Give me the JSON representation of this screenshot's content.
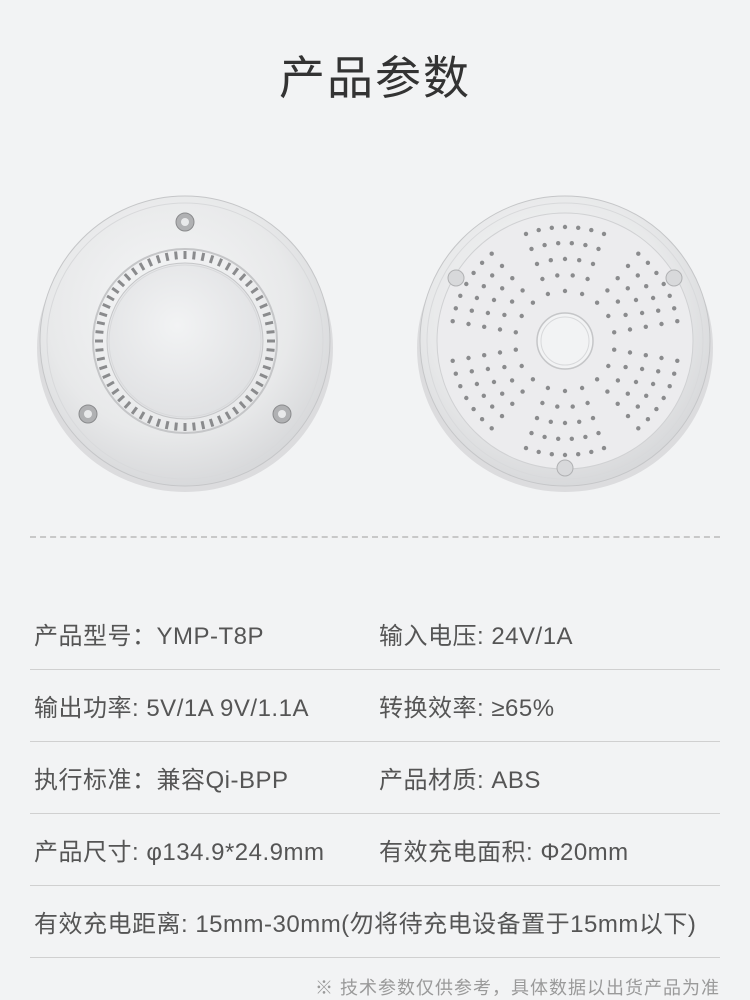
{
  "title": "产品参数",
  "styling": {
    "page_bg": "#f2f3f4",
    "title_color": "#333333",
    "title_fontsize": 46,
    "underline_color": "#1a3a5a",
    "underline_width": 44,
    "underline_height": 4,
    "divider_color": "#c8c8c8",
    "row_border_color": "#d0d0d0",
    "spec_text_color": "#555555",
    "spec_fontsize": 24,
    "footnote_color": "#9a9a9a",
    "footnote_fontsize": 18
  },
  "product_image": {
    "disc_body_color": "#e8e9ea",
    "disc_highlight": "#f6f7f8",
    "disc_shadow": "#c5c6c8",
    "hole_color": "#8a8b8d",
    "screw_color": "#b0b1b3",
    "rim_color": "#d8d9db"
  },
  "specs": {
    "rows": [
      {
        "left": "产品型号：YMP-T8P",
        "right": "输入电压: 24V/1A"
      },
      {
        "left": "输出功率: 5V/1A  9V/1.1A",
        "right": "转换效率: ≥65%"
      },
      {
        "left": "执行标准：兼容Qi-BPP",
        "right": "产品材质: ABS"
      },
      {
        "left": "产品尺寸: φ134.9*24.9mm",
        "right": "有效充电面积: Φ20mm"
      },
      {
        "full": "有效充电距离: 15mm-30mm(勿将待充电设备置于15mm以下)"
      }
    ]
  },
  "footnote": "※ 技术参数仅供参考，具体数据以出货产品为准"
}
